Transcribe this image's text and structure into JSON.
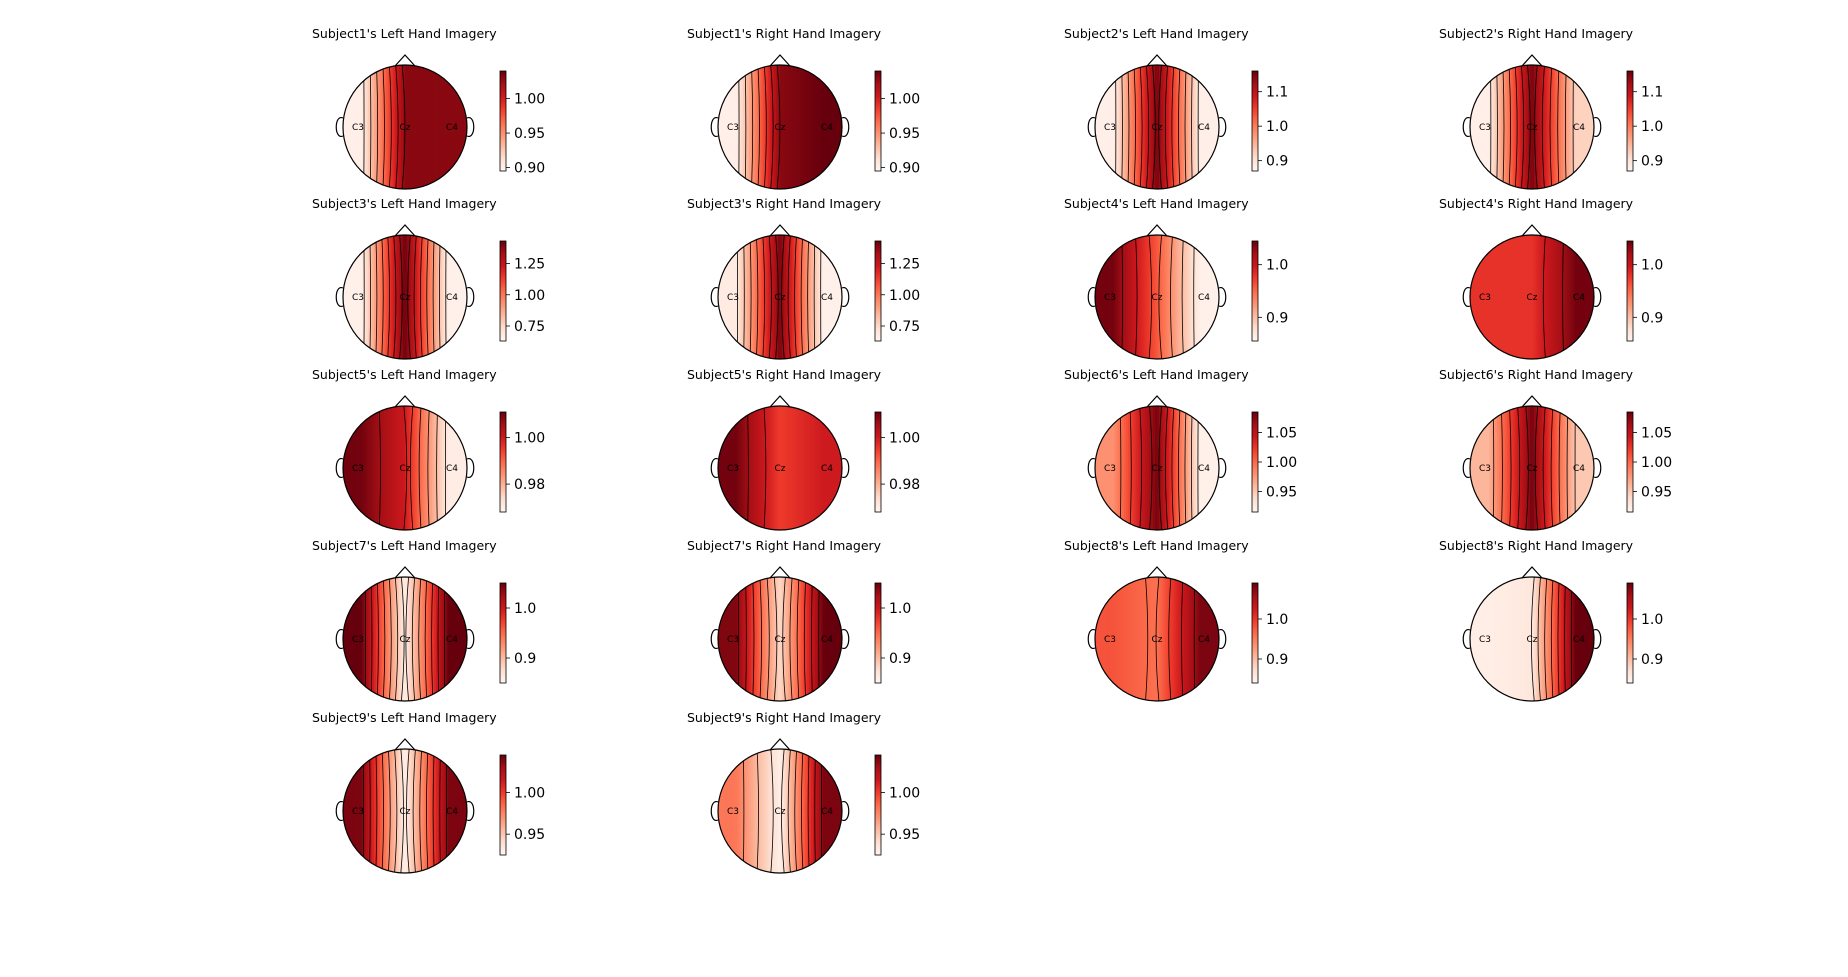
{
  "chart_data": {
    "type": "heatmap",
    "colormap": "Reds",
    "electrodes": [
      "C3",
      "Cz",
      "C4"
    ],
    "panels": [
      {
        "title": "Subject1's Left Hand Imagery",
        "weights": [
          0.9,
          1.03,
          1.03
        ],
        "ticks": [
          "1.00",
          "0.95",
          "0.90"
        ],
        "range": [
          0.895,
          1.04
        ]
      },
      {
        "title": "Subject1's Right Hand Imagery",
        "weights": [
          0.9,
          1.03,
          1.04
        ],
        "ticks": [
          "1.00",
          "0.95",
          "0.90"
        ],
        "range": [
          0.895,
          1.04
        ]
      },
      {
        "title": "Subject2's Left Hand Imagery",
        "weights": [
          0.88,
          1.15,
          0.88
        ],
        "ticks": [
          "1.1",
          "1.0",
          "0.9"
        ],
        "range": [
          0.87,
          1.16
        ]
      },
      {
        "title": "Subject2's Right Hand Imagery",
        "weights": [
          0.88,
          1.15,
          0.92
        ],
        "ticks": [
          "1.1",
          "1.0",
          "0.9"
        ],
        "range": [
          0.87,
          1.16
        ]
      },
      {
        "title": "Subject3's Left Hand Imagery",
        "weights": [
          0.65,
          1.42,
          0.65
        ],
        "ticks": [
          "1.25",
          "1.00",
          "0.75"
        ],
        "range": [
          0.63,
          1.43
        ]
      },
      {
        "title": "Subject3's Right Hand Imagery",
        "weights": [
          0.68,
          1.4,
          0.65
        ],
        "ticks": [
          "1.25",
          "1.00",
          "0.75"
        ],
        "range": [
          0.63,
          1.43
        ]
      },
      {
        "title": "Subject4's Left Hand Imagery",
        "weights": [
          1.04,
          0.96,
          0.86
        ],
        "ticks": [
          "1.0",
          "0.9"
        ],
        "range": [
          0.855,
          1.045
        ]
      },
      {
        "title": "Subject4's Right Hand Imagery",
        "weights": [
          0.98,
          0.98,
          1.04
        ],
        "ticks": [
          "1.0",
          "0.9"
        ],
        "range": [
          0.855,
          1.045
        ]
      },
      {
        "title": "Subject5's Left Hand Imagery",
        "weights": [
          1.01,
          1.0,
          0.97
        ],
        "ticks": [
          "1.00",
          "0.98"
        ],
        "range": [
          0.968,
          1.011
        ]
      },
      {
        "title": "Subject5's Right Hand Imagery",
        "weights": [
          1.01,
          0.995,
          1.0
        ],
        "ticks": [
          "1.00",
          "0.98"
        ],
        "range": [
          0.968,
          1.011
        ]
      },
      {
        "title": "Subject6's Left Hand Imagery",
        "weights": [
          0.98,
          1.08,
          0.92
        ],
        "ticks": [
          "1.05",
          "1.00",
          "0.95"
        ],
        "range": [
          0.915,
          1.085
        ]
      },
      {
        "title": "Subject6's Right Hand Imagery",
        "weights": [
          0.96,
          1.08,
          0.95
        ],
        "ticks": [
          "1.05",
          "1.00",
          "0.95"
        ],
        "range": [
          0.915,
          1.085
        ]
      },
      {
        "title": "Subject7's Left Hand Imagery",
        "weights": [
          1.05,
          0.86,
          1.05
        ],
        "ticks": [
          "1.0",
          "0.9"
        ],
        "range": [
          0.85,
          1.05
        ]
      },
      {
        "title": "Subject7's Right Hand Imagery",
        "weights": [
          1.04,
          0.88,
          1.05
        ],
        "ticks": [
          "1.0",
          "0.9"
        ],
        "range": [
          0.85,
          1.05
        ]
      },
      {
        "title": "Subject8's Left Hand Imagery",
        "weights": [
          0.98,
          0.96,
          1.08
        ],
        "ticks": [
          "1.0",
          "0.9"
        ],
        "range": [
          0.84,
          1.09
        ]
      },
      {
        "title": "Subject8's Right Hand Imagery",
        "weights": [
          0.85,
          0.86,
          1.09
        ],
        "ticks": [
          "1.0",
          "0.9"
        ],
        "range": [
          0.84,
          1.09
        ]
      },
      {
        "title": "Subject9's Left Hand Imagery",
        "weights": [
          1.04,
          0.93,
          1.04
        ],
        "ticks": [
          "1.00",
          "0.95"
        ],
        "range": [
          0.925,
          1.045
        ]
      },
      {
        "title": "Subject9's Right Hand Imagery",
        "weights": [
          0.98,
          0.93,
          1.04
        ],
        "ticks": [
          "1.00",
          "0.95"
        ],
        "range": [
          0.925,
          1.045
        ]
      }
    ],
    "tick_values": [
      [
        1.0,
        0.95,
        0.9
      ],
      [
        1.0,
        0.95,
        0.9
      ],
      [
        1.1,
        1.0,
        0.9
      ],
      [
        1.1,
        1.0,
        0.9
      ],
      [
        1.25,
        1.0,
        0.75
      ],
      [
        1.25,
        1.0,
        0.75
      ],
      [
        1.0,
        0.9
      ],
      [
        1.0,
        0.9
      ],
      [
        1.0,
        0.98
      ],
      [
        1.0,
        0.98
      ],
      [
        1.05,
        1.0,
        0.95
      ],
      [
        1.05,
        1.0,
        0.95
      ],
      [
        1.0,
        0.9
      ],
      [
        1.0,
        0.9
      ],
      [
        1.0,
        0.9
      ],
      [
        1.0,
        0.9
      ],
      [
        1.0,
        0.95
      ],
      [
        1.0,
        0.95
      ]
    ]
  }
}
